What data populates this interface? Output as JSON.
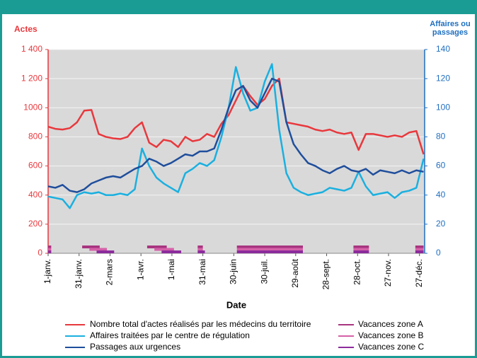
{
  "chart_data": {
    "type": "line",
    "ylabel": "Actes",
    "y2label": [
      "Affaires ou",
      "passages"
    ],
    "xlabel": "Date",
    "xlim": [
      0,
      364
    ],
    "xticks": [
      {
        "value": 0,
        "label": "1-janv."
      },
      {
        "value": 30,
        "label": "31-janv."
      },
      {
        "value": 60,
        "label": "2-mars"
      },
      {
        "value": 90,
        "label": "1-avr."
      },
      {
        "value": 120,
        "label": "1-mai"
      },
      {
        "value": 150,
        "label": "31-mai"
      },
      {
        "value": 180,
        "label": "30-juin"
      },
      {
        "value": 210,
        "label": "30-juil."
      },
      {
        "value": 240,
        "label": "29-août"
      },
      {
        "value": 270,
        "label": "28-sept."
      },
      {
        "value": 300,
        "label": "28-oct."
      },
      {
        "value": 330,
        "label": "27-nov."
      },
      {
        "value": 360,
        "label": "27-déc."
      }
    ],
    "ylim": [
      0,
      1400
    ],
    "yticks": [
      0,
      200,
      400,
      600,
      800,
      1000,
      {
        "value": 1200,
        "label": "1 200"
      },
      {
        "value": 1400,
        "label": "1 400"
      }
    ],
    "y2lim": [
      0,
      140
    ],
    "y2ticks": [
      0,
      20,
      40,
      60,
      80,
      100,
      120,
      140
    ],
    "grid": true,
    "x": [
      0,
      7,
      14,
      21,
      28,
      35,
      42,
      49,
      56,
      63,
      70,
      77,
      84,
      91,
      98,
      105,
      112,
      119,
      126,
      133,
      140,
      147,
      154,
      161,
      168,
      175,
      182,
      189,
      196,
      203,
      210,
      217,
      224,
      231,
      238,
      245,
      252,
      259,
      266,
      273,
      280,
      287,
      294,
      301,
      308,
      315,
      322,
      329,
      336,
      343,
      350,
      357,
      364
    ],
    "series": [
      {
        "name": "Nombre total d'actes réalisés par les médecins du territoire",
        "color": "#e8383d",
        "values": [
          870,
          855,
          850,
          860,
          900,
          980,
          985,
          820,
          800,
          790,
          785,
          800,
          860,
          900,
          760,
          730,
          780,
          770,
          730,
          800,
          770,
          780,
          820,
          800,
          890,
          950,
          1050,
          1150,
          1080,
          1020,
          1060,
          1150,
          1200,
          900,
          890,
          880,
          870,
          850,
          840,
          850,
          830,
          820,
          830,
          710,
          820,
          820,
          810,
          800,
          810,
          800,
          830,
          840,
          680
        ]
      },
      {
        "name": "Affaires traitées par le centre de régulation",
        "color": "#1ab0e0",
        "axis": "y2",
        "values": [
          39,
          38,
          37,
          31,
          40,
          42,
          41,
          42,
          40,
          40,
          41,
          40,
          44,
          72,
          60,
          52,
          48,
          45,
          42,
          55,
          58,
          62,
          60,
          64,
          80,
          100,
          128,
          110,
          98,
          100,
          118,
          130,
          85,
          55,
          45,
          42,
          40,
          41,
          42,
          45,
          44,
          43,
          45,
          56,
          46,
          40,
          41,
          42,
          38,
          42,
          43,
          45,
          65
        ]
      },
      {
        "name": "Passages aux urgences",
        "color": "#1f4e9c",
        "axis": "y2",
        "values": [
          46,
          45,
          47,
          43,
          42,
          44,
          48,
          50,
          52,
          53,
          52,
          55,
          58,
          60,
          65,
          63,
          60,
          62,
          65,
          68,
          67,
          70,
          70,
          72,
          85,
          100,
          112,
          115,
          105,
          100,
          110,
          120,
          118,
          90,
          75,
          68,
          62,
          60,
          57,
          55,
          58,
          60,
          57,
          56,
          58,
          54,
          57,
          56,
          55,
          57,
          55,
          57,
          56
        ]
      }
    ],
    "vacations": [
      {
        "name": "Vacances zone A",
        "color": "#a8357f",
        "periods": [
          [
            0,
            3
          ],
          [
            33,
            50
          ],
          [
            96,
            115
          ],
          [
            145,
            150
          ],
          [
            183,
            247
          ],
          [
            296,
            311
          ],
          [
            356,
            364
          ]
        ]
      },
      {
        "name": "Vacances zone B",
        "color": "#d560a8",
        "periods": [
          [
            0,
            3
          ],
          [
            40,
            57
          ],
          [
            103,
            122
          ],
          [
            145,
            150
          ],
          [
            183,
            247
          ],
          [
            296,
            311
          ],
          [
            356,
            364
          ]
        ]
      },
      {
        "name": "Vacances zone C",
        "color": "#8c2c9c",
        "periods": [
          [
            0,
            3
          ],
          [
            47,
            64
          ],
          [
            110,
            129
          ],
          [
            145,
            152
          ],
          [
            183,
            247
          ],
          [
            296,
            311
          ],
          [
            356,
            364
          ]
        ]
      }
    ]
  }
}
